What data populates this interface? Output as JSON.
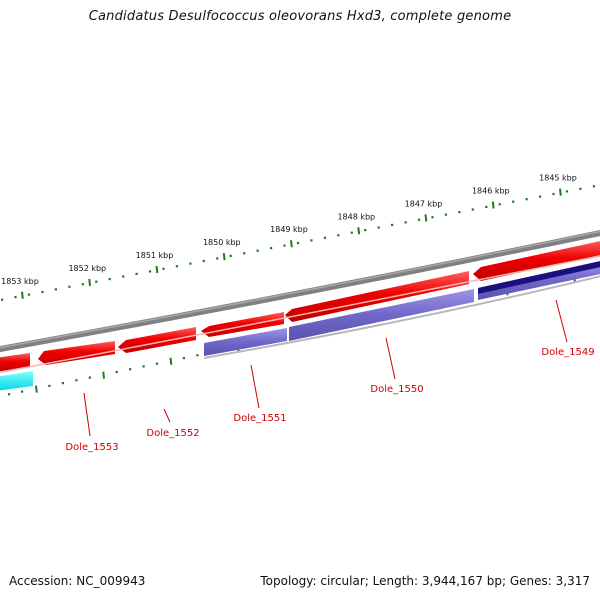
{
  "title": "Candidatus Desulfococcus oleovorans Hxd3, complete genome",
  "footer": {
    "accession_label": "Accession: NC_009943",
    "stats_label": "Topology: circular; Length: 3,944,167 bp; Genes: 3,317"
  },
  "scale": {
    "unit": "kbp",
    "outer_ticks": [
      "1845 kbp",
      "1846 kbp",
      "1847 kbp",
      "1848 kbp",
      "1849 kbp",
      "1850 kbp",
      "1851 kbp",
      "1852 kbp",
      "1853 kbp"
    ]
  },
  "genes": [
    {
      "label": "Dole_1549",
      "strand": "-"
    },
    {
      "label": "Dole_1550",
      "strand": "-"
    },
    {
      "label": "Dole_1551",
      "strand": "-"
    },
    {
      "label": "Dole_1552",
      "strand": "+"
    },
    {
      "label": "Dole_1553",
      "strand": "+"
    }
  ],
  "colors": {
    "forward_gene": "#e8000b",
    "reverse_gene": "#7068c8",
    "reverse_gene_dark": "#1a1080",
    "other_gene": "#00e4f0",
    "backbone": "#808080",
    "tick": "#1f7a1f",
    "gene_label": "#d40000"
  }
}
